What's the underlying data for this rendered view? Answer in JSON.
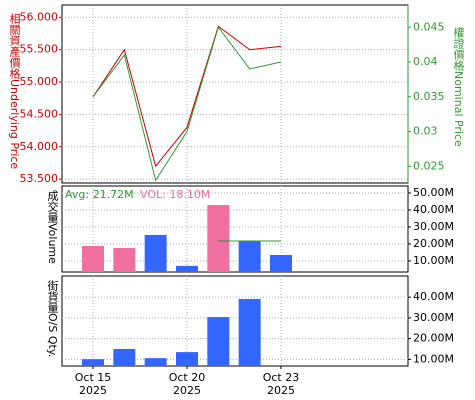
{
  "chart_data": [
    {
      "type": "line",
      "y_label": "相關資產價格Underlying Price",
      "y2_label": "權證價格Nominal Price",
      "ylim": [
        53.44,
        56.19
      ],
      "yticks": [
        {
          "value": 53.5,
          "label": "53.500"
        },
        {
          "value": 54,
          "label": "54.000"
        },
        {
          "value": 54.5,
          "label": "54.500"
        },
        {
          "value": 55,
          "label": "55.000"
        },
        {
          "value": 55.5,
          "label": "55.500"
        },
        {
          "value": 56,
          "label": "56.000"
        }
      ],
      "y2lim": [
        0.0226,
        0.0482
      ],
      "y2ticks": [
        0.025,
        0.03,
        0.035,
        0.04,
        0.045
      ],
      "series": [
        {
          "name": "Underlying Price",
          "color": "#cc0000",
          "values": [
            54.77,
            55.5,
            53.7,
            54.3,
            55.86,
            55.5,
            55.55
          ]
        },
        {
          "name": "Nominal Price",
          "color": "#339933",
          "axis": "y2",
          "values": [
            0.035,
            0.041,
            0.023,
            0.03,
            0.045,
            0.039,
            0.04
          ]
        }
      ]
    },
    {
      "type": "bar",
      "y_label": "成交量Volume",
      "avg_label": "Avg: 21.72M",
      "avg": 21.72,
      "avg_color": "#339933",
      "vol_label": "VOL: 18.10M",
      "vol_color": "#f06ea0",
      "ylim": [
        3.5,
        54.1
      ],
      "yticks": [
        {
          "value": 10,
          "label": "10.00M"
        },
        {
          "value": 20,
          "label": "20.00M"
        },
        {
          "value": 30,
          "label": "30.00M"
        },
        {
          "value": 40,
          "label": "40.00M"
        },
        {
          "value": 50,
          "label": "50.00M"
        }
      ],
      "values": [
        18.8,
        17.6,
        25.3,
        7.1,
        42.9,
        21.8,
        13.5
      ],
      "colors": [
        "#f06ea0",
        "#f06ea0",
        "#3366ff",
        "#3366ff",
        "#f06ea0",
        "#3366ff",
        "#3366ff"
      ]
    },
    {
      "type": "bar",
      "y_label": "街貨量O/S Qty.",
      "ylim": [
        6.8,
        50.2
      ],
      "yticks": [
        {
          "value": 10,
          "label": "10.00M"
        },
        {
          "value": 20,
          "label": "20.00M"
        },
        {
          "value": 30,
          "label": "30.00M"
        },
        {
          "value": 40,
          "label": "40.00M"
        }
      ],
      "values": [
        10.1,
        15.0,
        10.6,
        13.5,
        30.4,
        39.1,
        null
      ],
      "color": "#3366ff",
      "categories": [
        "Oct 15",
        null,
        null,
        "Oct 20",
        null,
        null,
        "Oct 23"
      ],
      "category_years": [
        "2025",
        null,
        null,
        "2025",
        null,
        null,
        "2025"
      ]
    }
  ]
}
